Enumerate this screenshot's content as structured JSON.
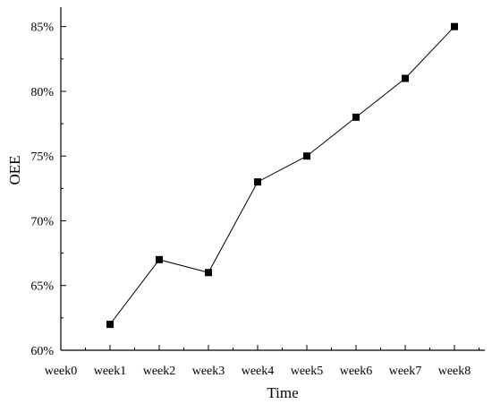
{
  "chart_data": {
    "type": "line",
    "title": "",
    "xlabel": "Time",
    "ylabel": "OEE",
    "categories": [
      "week0",
      "week1",
      "week2",
      "week3",
      "week4",
      "week5",
      "week6",
      "week7",
      "week8"
    ],
    "x": [
      "week1",
      "week2",
      "week3",
      "week4",
      "week5",
      "week6",
      "week7",
      "week8"
    ],
    "series": [
      {
        "values": [
          62,
          67,
          66,
          73,
          75,
          78,
          81,
          85
        ]
      }
    ],
    "ylim": [
      60,
      86.5
    ],
    "y_ticks": [
      60,
      65,
      70,
      75,
      80,
      85
    ],
    "y_tick_labels": [
      "60%",
      "65%",
      "70%",
      "75%",
      "80%",
      "85%"
    ],
    "marker": "square",
    "color": "#000000",
    "grid": false,
    "legend": "none"
  }
}
